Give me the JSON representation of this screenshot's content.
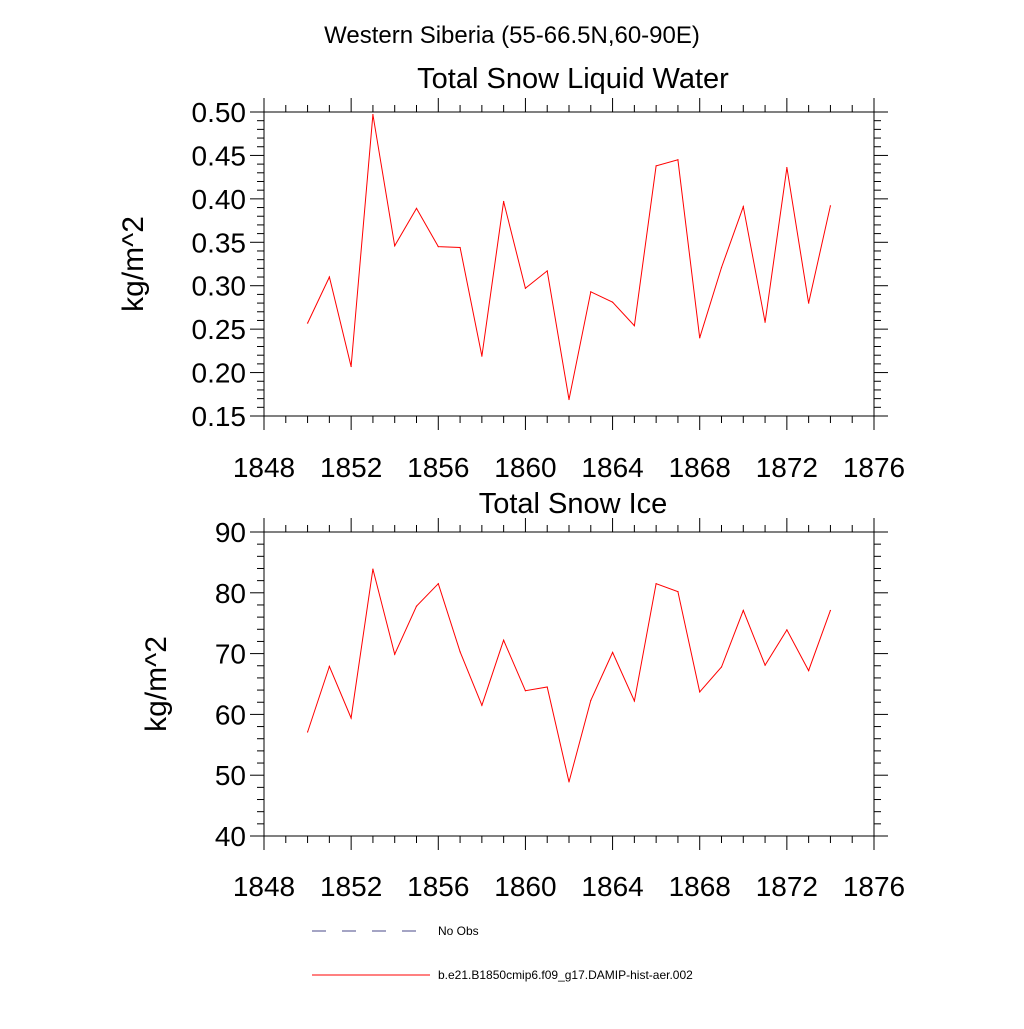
{
  "figure_title": "Western Siberia (55-66.5N,60-90E)",
  "legend": [
    {
      "label": "No Obs",
      "color": "#4a4a8a",
      "style": "dashed"
    },
    {
      "label": "b.e21.B1850cmip6.f09_g17.DAMIP-hist-aer.002",
      "color": "#ff0000",
      "style": "solid"
    }
  ],
  "chart_data": [
    {
      "type": "line",
      "title": "Total Snow Liquid Water",
      "ylabel": "kg/m^2",
      "xlabel": "",
      "xlim": [
        1848,
        1876
      ],
      "ylim": [
        0.15,
        0.5
      ],
      "xticks": [
        "1848",
        "1852",
        "1856",
        "1860",
        "1864",
        "1868",
        "1872",
        "1876"
      ],
      "yticks": [
        "0.15",
        "0.20",
        "0.25",
        "0.30",
        "0.35",
        "0.40",
        "0.45",
        "0.50"
      ],
      "color": "#ff0000",
      "series": [
        {
          "name": "b.e21.B1850cmip6.f09_g17.DAMIP-hist-aer.002",
          "x": [
            1850,
            1851,
            1852,
            1853,
            1854,
            1855,
            1856,
            1857,
            1858,
            1859,
            1860,
            1861,
            1862,
            1863,
            1864,
            1865,
            1866,
            1867,
            1868,
            1869,
            1870,
            1871,
            1872,
            1873,
            1874
          ],
          "values": [
            0.257,
            0.31,
            0.207,
            0.497,
            0.346,
            0.389,
            0.345,
            0.344,
            0.219,
            0.397,
            0.297,
            0.317,
            0.169,
            0.293,
            0.281,
            0.254,
            0.438,
            0.445,
            0.24,
            0.321,
            0.391,
            0.258,
            0.436,
            0.28,
            0.392
          ]
        }
      ]
    },
    {
      "type": "line",
      "title": "Total Snow Ice",
      "ylabel": "kg/m^2",
      "xlabel": "",
      "xlim": [
        1848,
        1876
      ],
      "ylim": [
        40,
        90
      ],
      "xticks": [
        "1848",
        "1852",
        "1856",
        "1860",
        "1864",
        "1868",
        "1872",
        "1876"
      ],
      "yticks": [
        "40",
        "50",
        "60",
        "70",
        "80",
        "90"
      ],
      "color": "#ff0000",
      "series": [
        {
          "name": "b.e21.B1850cmip6.f09_g17.DAMIP-hist-aer.002",
          "x": [
            1850,
            1851,
            1852,
            1853,
            1854,
            1855,
            1856,
            1857,
            1858,
            1859,
            1860,
            1861,
            1862,
            1863,
            1864,
            1865,
            1866,
            1867,
            1868,
            1869,
            1870,
            1871,
            1872,
            1873,
            1874
          ],
          "values": [
            57.1,
            67.9,
            59.4,
            83.9,
            69.9,
            77.8,
            81.5,
            70.3,
            61.5,
            72.2,
            63.9,
            64.5,
            48.9,
            62.3,
            70.2,
            62.2,
            81.5,
            80.2,
            63.7,
            67.8,
            77.1,
            68.1,
            73.9,
            67.2,
            77.1
          ]
        }
      ]
    }
  ]
}
